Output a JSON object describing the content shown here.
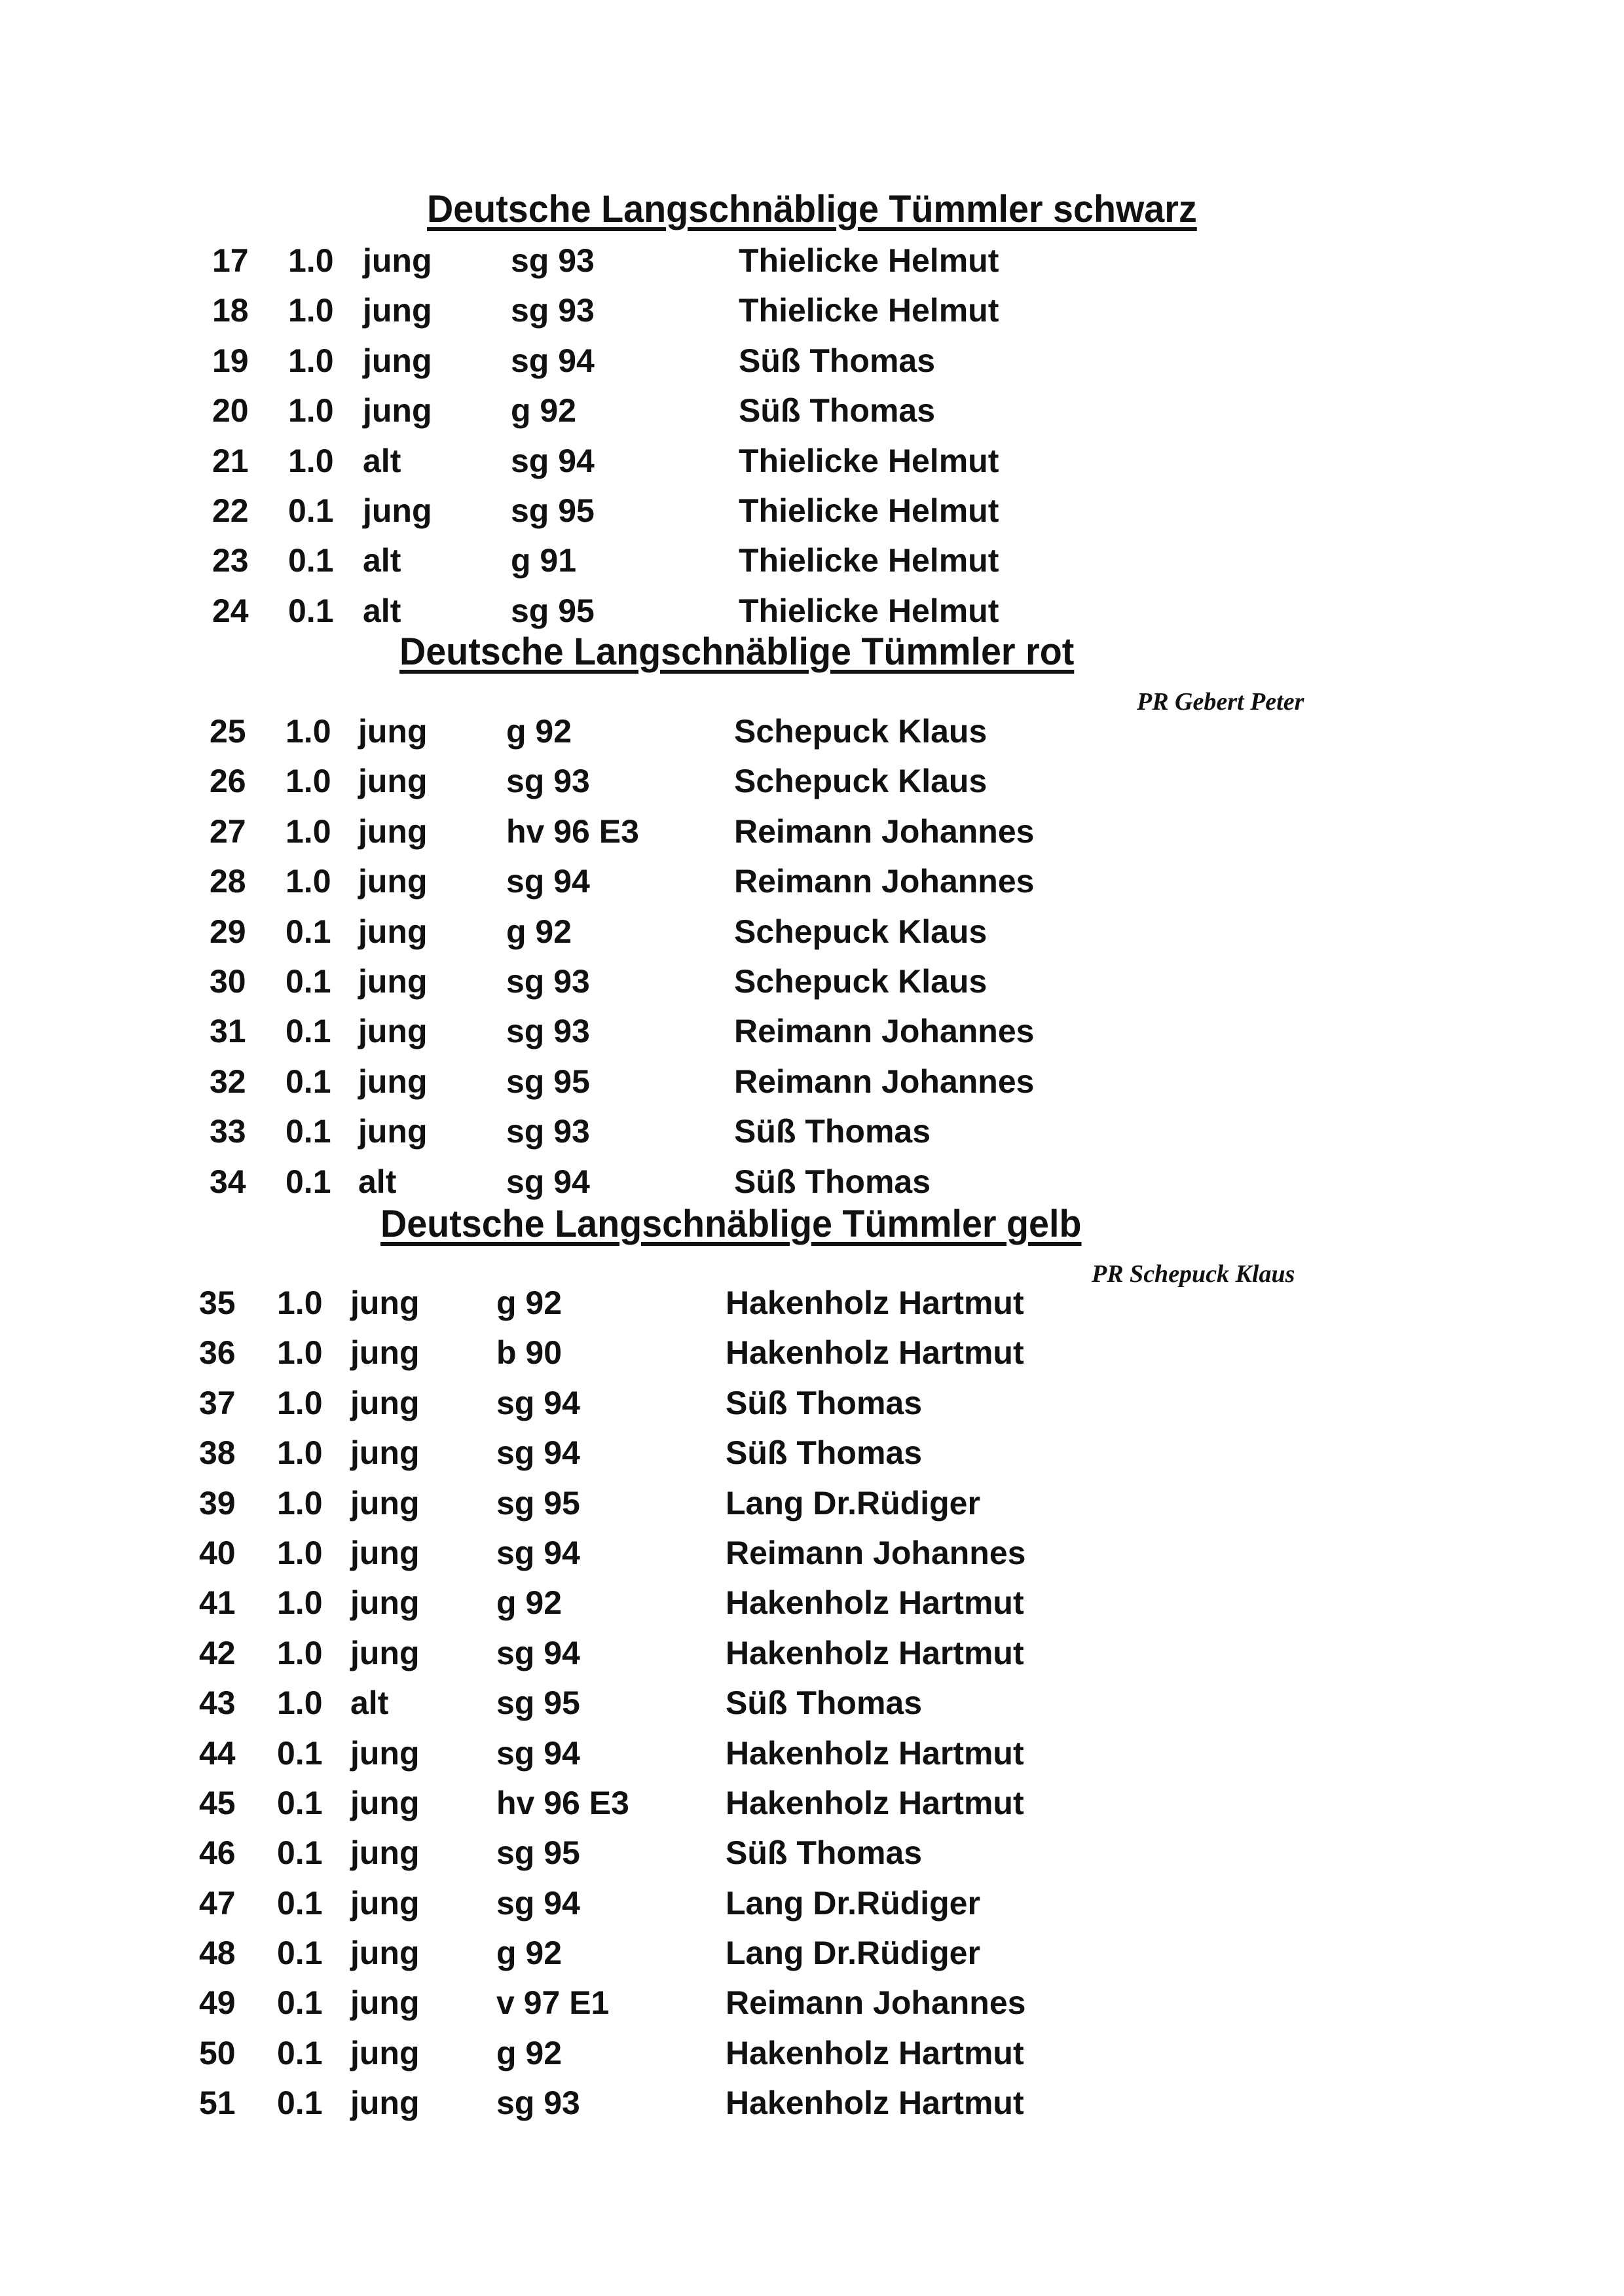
{
  "sections": [
    {
      "title": "Deutsche Langschnäblige Tümmler schwarz",
      "judge": "",
      "rows": [
        {
          "num": "17",
          "sex": "1.0",
          "age": "jung",
          "grade": "sg 93",
          "owner": "Thielicke Helmut"
        },
        {
          "num": "18",
          "sex": "1.0",
          "age": "jung",
          "grade": "sg 93",
          "owner": "Thielicke Helmut"
        },
        {
          "num": "19",
          "sex": "1.0",
          "age": "jung",
          "grade": "sg 94",
          "owner": "Süß Thomas"
        },
        {
          "num": "20",
          "sex": "1.0",
          "age": "jung",
          "grade": "g 92",
          "owner": "Süß Thomas"
        },
        {
          "num": "21",
          "sex": "1.0",
          "age": "alt",
          "grade": "sg 94",
          "owner": "Thielicke Helmut"
        },
        {
          "num": "22",
          "sex": "0.1",
          "age": "jung",
          "grade": "sg 95",
          "owner": "Thielicke Helmut"
        },
        {
          "num": "23",
          "sex": "0.1",
          "age": "alt",
          "grade": "g 91",
          "owner": "Thielicke Helmut"
        },
        {
          "num": "24",
          "sex": "0.1",
          "age": "alt",
          "grade": "sg 95",
          "owner": "Thielicke Helmut"
        }
      ]
    },
    {
      "title": "Deutsche Langschnäblige Tümmler rot",
      "judge": "PR Gebert Peter",
      "rows": [
        {
          "num": "25",
          "sex": "1.0",
          "age": "jung",
          "grade": "g 92",
          "owner": "Schepuck Klaus"
        },
        {
          "num": "26",
          "sex": "1.0",
          "age": "jung",
          "grade": "sg 93",
          "owner": "Schepuck Klaus"
        },
        {
          "num": "27",
          "sex": "1.0",
          "age": "jung",
          "grade": "hv 96 E3",
          "owner": "Reimann Johannes"
        },
        {
          "num": "28",
          "sex": "1.0",
          "age": "jung",
          "grade": "sg 94",
          "owner": "Reimann Johannes"
        },
        {
          "num": "29",
          "sex": "0.1",
          "age": "jung",
          "grade": "g 92",
          "owner": "Schepuck Klaus"
        },
        {
          "num": "30",
          "sex": "0.1",
          "age": "jung",
          "grade": "sg 93",
          "owner": "Schepuck Klaus"
        },
        {
          "num": "31",
          "sex": "0.1",
          "age": "jung",
          "grade": "sg 93",
          "owner": "Reimann Johannes"
        },
        {
          "num": "32",
          "sex": "0.1",
          "age": "jung",
          "grade": "sg 95",
          "owner": "Reimann Johannes"
        },
        {
          "num": "33",
          "sex": "0.1",
          "age": "jung",
          "grade": "sg 93",
          "owner": "Süß Thomas"
        },
        {
          "num": "34",
          "sex": "0.1",
          "age": "alt",
          "grade": "sg 94",
          "owner": "Süß Thomas"
        }
      ]
    },
    {
      "title": "Deutsche Langschnäblige Tümmler gelb",
      "judge": "PR Schepuck Klaus",
      "rows": [
        {
          "num": "35",
          "sex": "1.0",
          "age": "jung",
          "grade": "g 92",
          "owner": "Hakenholz Hartmut"
        },
        {
          "num": "36",
          "sex": "1.0",
          "age": "jung",
          "grade": "b 90",
          "owner": "Hakenholz Hartmut"
        },
        {
          "num": "37",
          "sex": "1.0",
          "age": "jung",
          "grade": "sg 94",
          "owner": "Süß Thomas"
        },
        {
          "num": "38",
          "sex": "1.0",
          "age": "jung",
          "grade": "sg 94",
          "owner": "Süß Thomas"
        },
        {
          "num": "39",
          "sex": "1.0",
          "age": "jung",
          "grade": "sg 95",
          "owner": "Lang Dr.Rüdiger"
        },
        {
          "num": "40",
          "sex": "1.0",
          "age": "jung",
          "grade": "sg 94",
          "owner": "Reimann Johannes"
        },
        {
          "num": "41",
          "sex": "1.0",
          "age": "jung",
          "grade": "g 92",
          "owner": "Hakenholz Hartmut"
        },
        {
          "num": "42",
          "sex": "1.0",
          "age": "jung",
          "grade": "sg 94",
          "owner": "Hakenholz Hartmut"
        },
        {
          "num": "43",
          "sex": "1.0",
          "age": "alt",
          "grade": "sg 95",
          "owner": "Süß Thomas"
        },
        {
          "num": "44",
          "sex": "0.1",
          "age": "jung",
          "grade": "sg 94",
          "owner": "Hakenholz Hartmut"
        },
        {
          "num": "45",
          "sex": "0.1",
          "age": "jung",
          "grade": "hv 96 E3",
          "owner": "Hakenholz Hartmut"
        },
        {
          "num": "46",
          "sex": "0.1",
          "age": "jung",
          "grade": "sg 95",
          "owner": "Süß Thomas"
        },
        {
          "num": "47",
          "sex": "0.1",
          "age": "jung",
          "grade": "sg 94",
          "owner": "Lang Dr.Rüdiger"
        },
        {
          "num": "48",
          "sex": "0.1",
          "age": "jung",
          "grade": "g 92",
          "owner": "Lang Dr.Rüdiger"
        },
        {
          "num": "49",
          "sex": "0.1",
          "age": "jung",
          "grade": "v 97 E1",
          "owner": "Reimann Johannes"
        },
        {
          "num": "50",
          "sex": "0.1",
          "age": "jung",
          "grade": "g 92",
          "owner": "Hakenholz Hartmut"
        },
        {
          "num": "51",
          "sex": "0.1",
          "age": "jung",
          "grade": "sg 93",
          "owner": "Hakenholz Hartmut"
        }
      ]
    }
  ]
}
